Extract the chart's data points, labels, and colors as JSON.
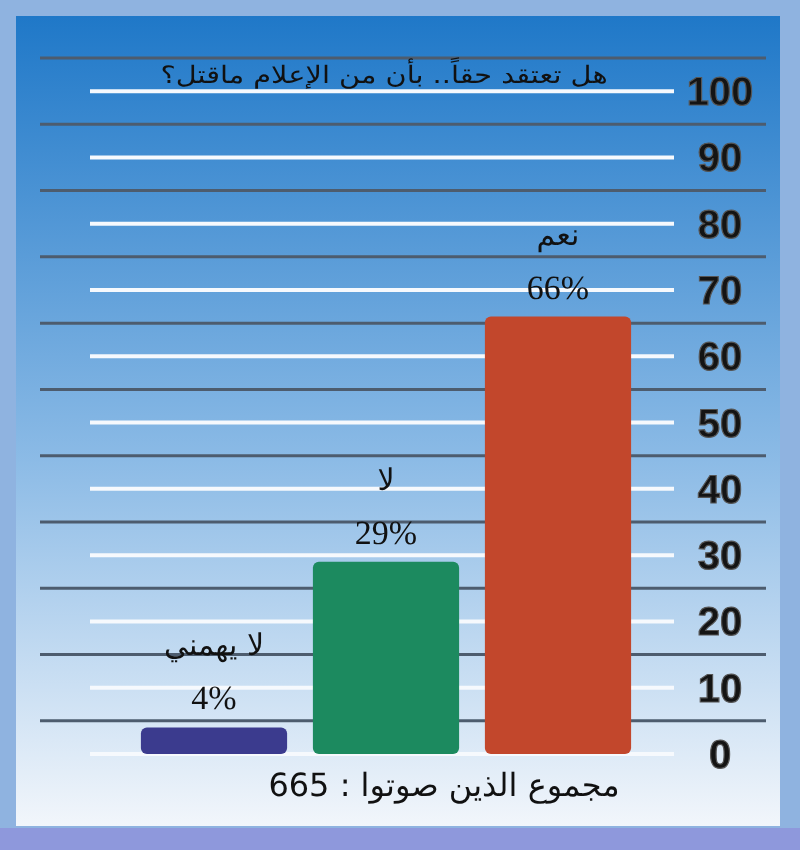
{
  "chart_data": {
    "type": "bar",
    "title": "هل تعتقد حقاً.. بأن من الإعلام ماقتل؟",
    "categories": [
      "لا يهمني",
      "لا",
      "نعم"
    ],
    "values": [
      4,
      29,
      66
    ],
    "colors": [
      "#3b3b8e",
      "#1c8a5f",
      "#c2472c"
    ],
    "value_labels": [
      "4%",
      "29%",
      "66%"
    ],
    "ylim": [
      0,
      105
    ],
    "yticks": [
      0,
      {
        "value": 5,
        "label": null
      },
      10,
      {
        "value": 15,
        "label": null
      },
      20,
      {
        "value": 25,
        "label": null
      },
      30,
      {
        "value": 35,
        "label": null
      },
      40,
      {
        "value": 45,
        "label": null
      },
      50,
      {
        "value": 55,
        "label": null
      },
      60,
      {
        "value": 65,
        "label": null
      },
      70,
      {
        "value": 75,
        "label": null
      },
      80,
      {
        "value": 85,
        "label": null
      },
      90,
      {
        "value": 95,
        "label": null
      },
      100,
      {
        "value": 105,
        "label": null
      }
    ],
    "grid": "y",
    "annotations": [
      "مجموع الذين صوتوا : 665"
    ]
  }
}
